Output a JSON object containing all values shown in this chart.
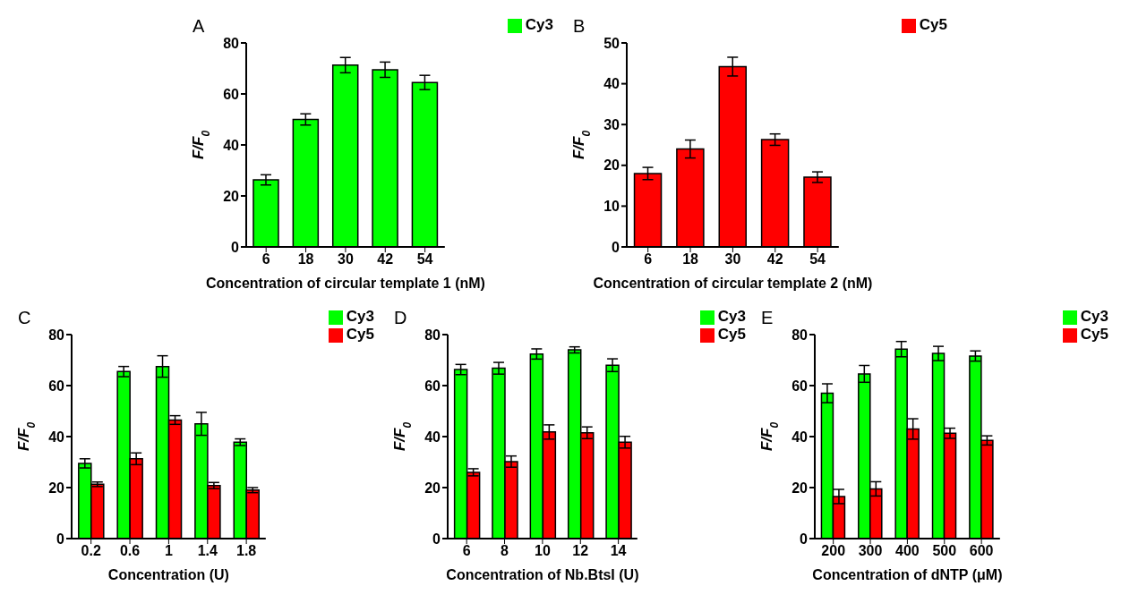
{
  "chart_data": [
    {
      "type": "bar",
      "title": "A",
      "xlabel": "Concentration of circular template 1 (nM)",
      "ylabel": "F/F$_{0}$",
      "categories": [
        "6",
        "18",
        "30",
        "42",
        "54"
      ],
      "ylim": [
        0,
        80
      ],
      "yticks": [
        0,
        20,
        40,
        60,
        80
      ],
      "legend": "top right",
      "series": [
        {
          "name": "Cy3",
          "color": "#00ff00",
          "values": [
            26.3,
            50,
            71.3,
            69.5,
            64.5
          ],
          "errors": [
            2,
            2.2,
            3,
            3,
            2.8
          ]
        }
      ]
    },
    {
      "type": "bar",
      "title": "B",
      "xlabel": "Concentration of circular template 2 (nM)",
      "ylabel": "F/F$_{0}$",
      "categories": [
        "6",
        "18",
        "30",
        "42",
        "54"
      ],
      "ylim": [
        0,
        50
      ],
      "yticks": [
        0,
        10,
        20,
        30,
        40,
        50
      ],
      "legend": "top right",
      "series": [
        {
          "name": "Cy5",
          "color": "#ff0000",
          "values": [
            18,
            24,
            44.2,
            26.3,
            17.1
          ],
          "errors": [
            1.5,
            2.2,
            2.3,
            1.4,
            1.3
          ]
        }
      ]
    },
    {
      "type": "bar",
      "title": "C",
      "xlabel": "Concentration (U)",
      "ylabel": "F/F$_{0}$",
      "categories": [
        "0.2",
        "0.6",
        "1",
        "1.4",
        "1.8"
      ],
      "ylim": [
        0,
        80
      ],
      "yticks": [
        0,
        20,
        40,
        60,
        80
      ],
      "legend": "top right",
      "series": [
        {
          "name": "Cy3",
          "color": "#00ff00",
          "values": [
            29.5,
            65.5,
            67.5,
            45,
            37.8
          ],
          "errors": [
            1.8,
            2,
            4.2,
            4.5,
            1.3
          ]
        },
        {
          "name": "Cy5",
          "color": "#ff0000",
          "values": [
            21.3,
            31.3,
            46.5,
            20.8,
            19
          ],
          "errors": [
            0.9,
            2.3,
            1.7,
            1.2,
            1
          ]
        }
      ]
    },
    {
      "type": "bar",
      "title": "D",
      "xlabel": "Concentration of Nb.BtsI (U)",
      "ylabel": "F/F$_{0}$",
      "categories": [
        "6",
        "8",
        "10",
        "12",
        "14"
      ],
      "ylim": [
        0,
        80
      ],
      "yticks": [
        0,
        20,
        40,
        60,
        80
      ],
      "legend": "top right",
      "series": [
        {
          "name": "Cy3",
          "color": "#00ff00",
          "values": [
            66.3,
            66.8,
            72.4,
            74,
            68
          ],
          "errors": [
            2,
            2.3,
            2,
            1.2,
            2.5
          ]
        },
        {
          "name": "Cy5",
          "color": "#ff0000",
          "values": [
            26,
            30.2,
            41.8,
            41.5,
            37.8
          ],
          "errors": [
            1.4,
            2.2,
            2.8,
            2.3,
            2.3
          ]
        }
      ]
    },
    {
      "type": "bar",
      "title": "E",
      "xlabel": "Concentration of dNTP (μM)",
      "ylabel": "F/F$_{0}$",
      "categories": [
        "200",
        "300",
        "400",
        "500",
        "600"
      ],
      "ylim": [
        0,
        80
      ],
      "yticks": [
        0,
        20,
        40,
        60,
        80
      ],
      "legend": "top right",
      "series": [
        {
          "name": "Cy3",
          "color": "#00ff00",
          "values": [
            57,
            64.6,
            74.3,
            72.6,
            71.6
          ],
          "errors": [
            3.7,
            3.3,
            3,
            2.8,
            2
          ]
        },
        {
          "name": "Cy5",
          "color": "#ff0000",
          "values": [
            16.5,
            19.5,
            43,
            41.3,
            38.5
          ],
          "errors": [
            2.8,
            2.8,
            4,
            2,
            1.8
          ]
        }
      ]
    }
  ]
}
